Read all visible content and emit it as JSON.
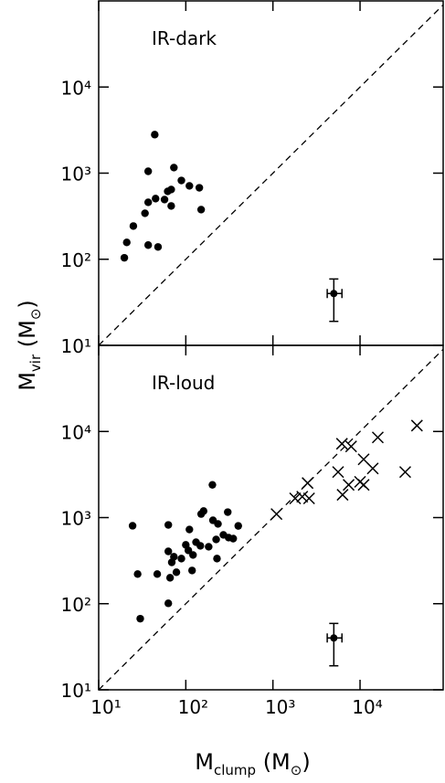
{
  "chart_data": [
    {
      "type": "scatter",
      "annotation": "IR-dark",
      "log_x": true,
      "log_y": true,
      "xlim": [
        10,
        90000
      ],
      "ylim": [
        10,
        100000
      ],
      "xticks": [
        10,
        100,
        1000,
        10000
      ],
      "xtick_labels": false,
      "yticks": [
        {
          "value": 10,
          "label": "10¹"
        },
        {
          "value": 100,
          "label": "10²"
        },
        {
          "value": 1000,
          "label": "10³"
        },
        {
          "value": 10000,
          "label": "10⁴"
        }
      ],
      "reference_line": {
        "style": "dashed",
        "x": [
          10,
          90000
        ],
        "y": [
          10,
          90000
        ]
      },
      "series": [
        {
          "marker": "circle",
          "color": "#000000",
          "x": [
            19.7,
            21,
            25,
            34,
            37,
            37,
            37,
            45,
            44,
            48,
            57,
            62,
            68,
            68,
            73,
            89,
            110,
            143,
            150
          ],
          "y": [
            104,
            157,
            243,
            342,
            458,
            1050,
            146,
            506,
            2800,
            139,
            493,
            614,
            645,
            416,
            1160,
            822,
            711,
            676,
            377
          ]
        }
      ],
      "error_bar": {
        "x": 5000,
        "y": 40,
        "x_low": 4200,
        "x_high": 6200,
        "y_low": 19,
        "y_high": 59
      }
    },
    {
      "type": "scatter",
      "annotation": "IR-loud",
      "log_x": true,
      "log_y": true,
      "xlim": [
        10,
        90000
      ],
      "ylim": [
        10,
        100000
      ],
      "xticks": [
        {
          "value": 10,
          "label": "10¹"
        },
        {
          "value": 100,
          "label": "10²"
        },
        {
          "value": 1000,
          "label": "10³"
        },
        {
          "value": 10000,
          "label": "10⁴"
        }
      ],
      "yticks": [
        {
          "value": 10,
          "label": "10¹"
        },
        {
          "value": 100,
          "label": "10²"
        },
        {
          "value": 1000,
          "label": "10³"
        },
        {
          "value": 10000,
          "label": "10⁴"
        }
      ],
      "xlabel": [
        "M",
        "clump",
        "  (M",
        "⊙",
        ")"
      ],
      "reference_line": {
        "style": "dashed",
        "x": [
          10,
          90000
        ],
        "y": [
          10,
          90000
        ]
      },
      "series": [
        {
          "marker": "circle",
          "color": "#000000",
          "x": [
            24.5,
            28,
            30,
            47,
            63,
            63,
            66,
            63,
            73,
            69,
            78,
            89,
            107,
            110,
            100,
            121,
            131,
            118,
            147,
            150,
            160,
            183,
            205,
            202,
            234,
            223,
            228,
            270,
            303,
            310,
            350,
            400
          ],
          "y": [
            803,
            221,
            67,
            221,
            822,
            405,
            200,
            101,
            351,
            302,
            232,
            334,
            416,
            727,
            482,
            368,
            518,
            243,
            470,
            1100,
            1190,
            458,
            930,
            2400,
            844,
            557,
            334,
            630,
            1157,
            585,
            570,
            800
          ]
        },
        {
          "marker": "cross",
          "color": "#000000",
          "x": [
            1100,
            1800,
            2170,
            2500,
            2600,
            5600,
            6200,
            6300,
            7900,
            7400,
            10000,
            11000,
            11000,
            14000,
            16000,
            33000,
            45000
          ],
          "y": [
            1100,
            1670,
            1750,
            2520,
            1670,
            3380,
            7200,
            1840,
            6700,
            2400,
            2600,
            2400,
            4750,
            3720,
            8530,
            3380,
            11700
          ]
        }
      ],
      "error_bar": {
        "x": 5000,
        "y": 40,
        "x_low": 4200,
        "x_high": 6200,
        "y_low": 19,
        "y_high": 59
      }
    }
  ],
  "ylabel": [
    "M",
    "vir",
    "  (M",
    "⊙",
    ")"
  ]
}
